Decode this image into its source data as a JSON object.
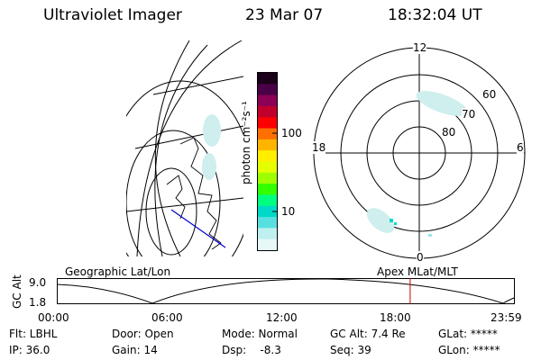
{
  "header": {
    "instrument": "Ultraviolet Imager",
    "date": "23 Mar 07",
    "time": "18:32:04 UT"
  },
  "colorbar": {
    "unit_label": "photon cm⁻²s⁻¹",
    "tick_labels": [
      "100",
      "10"
    ],
    "colors": [
      "#1a0019",
      "#4a0046",
      "#8c0055",
      "#c0002a",
      "#ff0000",
      "#ff7000",
      "#ffb400",
      "#ffee00",
      "#e6ff00",
      "#9dff00",
      "#33ff00",
      "#00ff80",
      "#00d9c8",
      "#58e0e0",
      "#bff0f0",
      "#e6f8f8"
    ]
  },
  "polar_plot": {
    "mlt_labels": [
      "12",
      "18",
      "6",
      "0"
    ],
    "lat_labels": [
      "60",
      "70",
      "80"
    ]
  },
  "timeline": {
    "left_label": "Geographic Lat/Lon",
    "right_label": "Apex MLat/MLT",
    "y_axis_label": "GC Alt",
    "y_ticks": [
      "9.0",
      "1.8"
    ],
    "x_ticks": [
      "00:00",
      "06:00",
      "12:00",
      "18:00",
      "23:59"
    ],
    "current_time_fraction": 0.772
  },
  "status": {
    "filter": "Flt: LBHL",
    "ip": "IP: 36.0",
    "door": "Door: Open",
    "gain": "Gain: 14",
    "mode": "Mode: Normal",
    "dsp": "Dsp:    -8.3",
    "gc_alt": "GC Alt: 7.4 Re",
    "seq": "Seq: 39",
    "glat": "GLat: *****",
    "glon": "GLon: *****"
  }
}
